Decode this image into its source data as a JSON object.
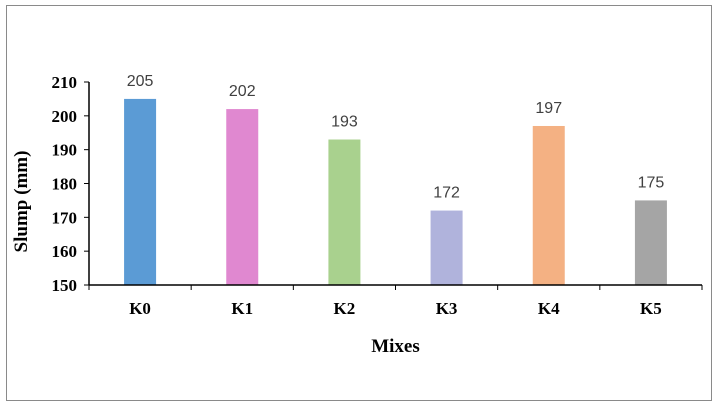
{
  "chart_data": {
    "type": "bar",
    "title": "",
    "xlabel": "Mixes",
    "ylabel": "Slump (mm)",
    "categories": [
      "K0",
      "K1",
      "K2",
      "K3",
      "K4",
      "K5"
    ],
    "values": [
      205,
      202,
      193,
      172,
      197,
      175
    ],
    "data_labels": [
      "205",
      "202",
      "193",
      "172",
      "197",
      "175"
    ],
    "colors": [
      "#5b9bd5",
      "#e088d0",
      "#a9d18e",
      "#b0b3dc",
      "#f4b183",
      "#a5a5a5"
    ],
    "ylim": [
      150,
      210
    ],
    "yticks": [
      "150",
      "160",
      "170",
      "180",
      "190",
      "200",
      "210"
    ],
    "grid": false,
    "legend": "none"
  }
}
